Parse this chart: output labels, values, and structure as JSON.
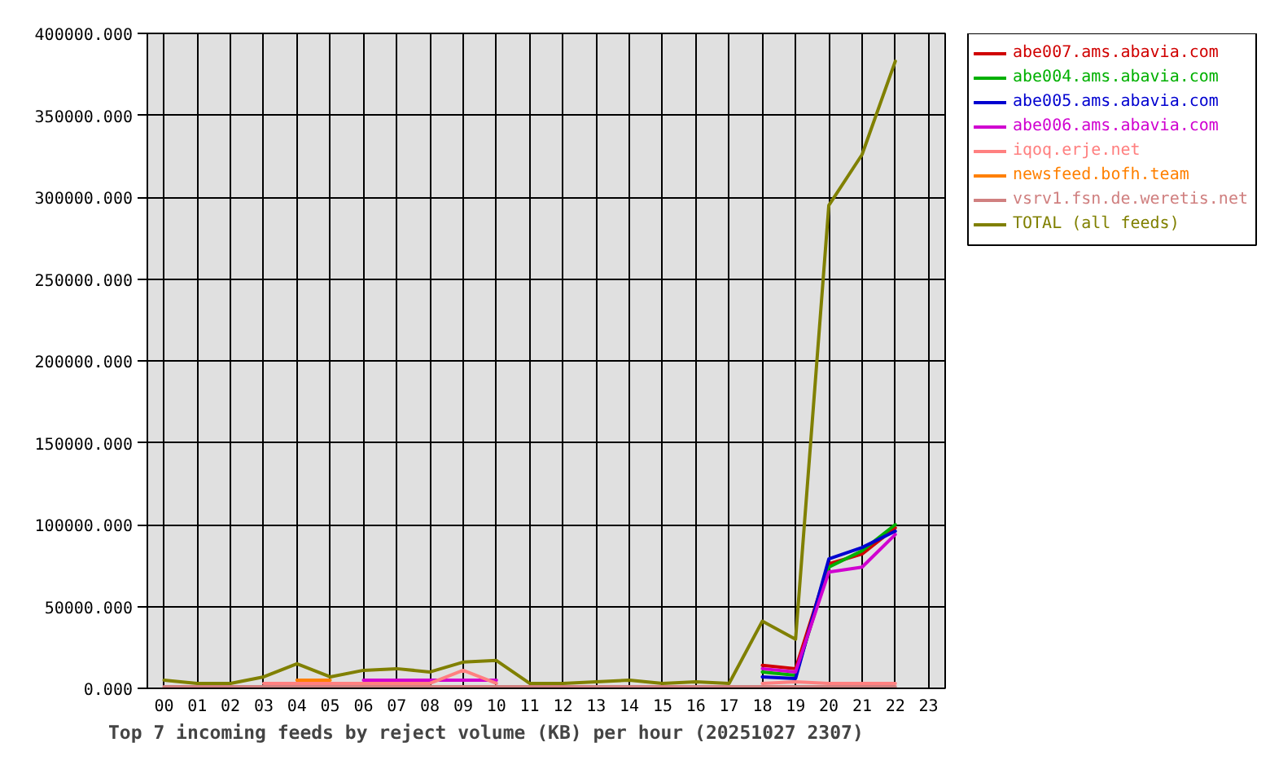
{
  "chart_data": {
    "type": "line",
    "title": "Top 7 incoming feeds by reject volume (KB) per hour (20251027 2307)",
    "categories": [
      "00",
      "01",
      "02",
      "03",
      "04",
      "05",
      "06",
      "07",
      "08",
      "09",
      "10",
      "11",
      "12",
      "13",
      "14",
      "15",
      "16",
      "17",
      "18",
      "19",
      "20",
      "21",
      "22",
      "23"
    ],
    "series": [
      {
        "name": "abe007.ams.abavia.com",
        "color": "#d00000",
        "values": [
          null,
          null,
          null,
          null,
          null,
          null,
          null,
          null,
          null,
          null,
          null,
          null,
          null,
          null,
          null,
          null,
          null,
          null,
          14000,
          12000,
          76000,
          82000,
          98000,
          null
        ]
      },
      {
        "name": "abe004.ams.abavia.com",
        "color": "#00b000",
        "values": [
          null,
          null,
          null,
          null,
          null,
          null,
          null,
          null,
          null,
          null,
          null,
          null,
          null,
          null,
          null,
          null,
          null,
          null,
          10000,
          8000,
          74000,
          84000,
          100000,
          null
        ]
      },
      {
        "name": "abe005.ams.abavia.com",
        "color": "#0000d0",
        "values": [
          null,
          null,
          null,
          null,
          null,
          null,
          null,
          null,
          null,
          null,
          null,
          null,
          null,
          null,
          null,
          null,
          null,
          null,
          7000,
          6000,
          79000,
          86000,
          96000,
          null
        ]
      },
      {
        "name": "abe006.ams.abavia.com",
        "color": "#d000d0",
        "values": [
          null,
          null,
          null,
          null,
          null,
          null,
          5000,
          5000,
          5000,
          5000,
          5000,
          null,
          null,
          null,
          null,
          null,
          null,
          null,
          12000,
          10000,
          71000,
          74000,
          94000,
          null
        ]
      },
      {
        "name": "iqoq.erje.net",
        "color": "#ff8080",
        "values": [
          null,
          null,
          null,
          3000,
          3000,
          3000,
          3000,
          3000,
          3000,
          11000,
          3000,
          null,
          null,
          null,
          null,
          null,
          null,
          null,
          3000,
          4000,
          3000,
          3000,
          3000,
          null
        ]
      },
      {
        "name": "newsfeed.bofh.team",
        "color": "#ff8000",
        "values": [
          null,
          null,
          null,
          null,
          5000,
          5000,
          null,
          null,
          null,
          null,
          null,
          null,
          null,
          null,
          null,
          null,
          null,
          null,
          null,
          null,
          null,
          null,
          null,
          null
        ]
      },
      {
        "name": "vsrv1.fsn.de.weretis.net",
        "color": "#d08080",
        "values": [
          1000,
          1000,
          1000,
          1000,
          1000,
          1000,
          1000,
          1000,
          1000,
          1000,
          1000,
          1000,
          1000,
          1000,
          1000,
          1000,
          1000,
          1000,
          1000,
          1000,
          1000,
          1000,
          1000,
          null
        ]
      },
      {
        "name": "TOTAL (all feeds)",
        "color": "#808000",
        "values": [
          5000,
          3000,
          3000,
          7000,
          15000,
          7000,
          11000,
          12000,
          10000,
          16000,
          17000,
          3000,
          3000,
          4000,
          5000,
          3000,
          4000,
          3000,
          41000,
          30000,
          295000,
          326000,
          383000,
          null
        ]
      }
    ],
    "ylim": [
      0,
      400000
    ],
    "yticks": [
      {
        "value": 0,
        "label": "0.000"
      },
      {
        "value": 50000,
        "label": "50000.000"
      },
      {
        "value": 100000,
        "label": "100000.000"
      },
      {
        "value": 150000,
        "label": "150000.000"
      },
      {
        "value": 200000,
        "label": "200000.000"
      },
      {
        "value": 250000,
        "label": "250000.000"
      },
      {
        "value": 300000,
        "label": "300000.000"
      },
      {
        "value": 350000,
        "label": "350000.000"
      },
      {
        "value": 400000,
        "label": "400000.000"
      }
    ],
    "grid": true,
    "legend": "right"
  }
}
